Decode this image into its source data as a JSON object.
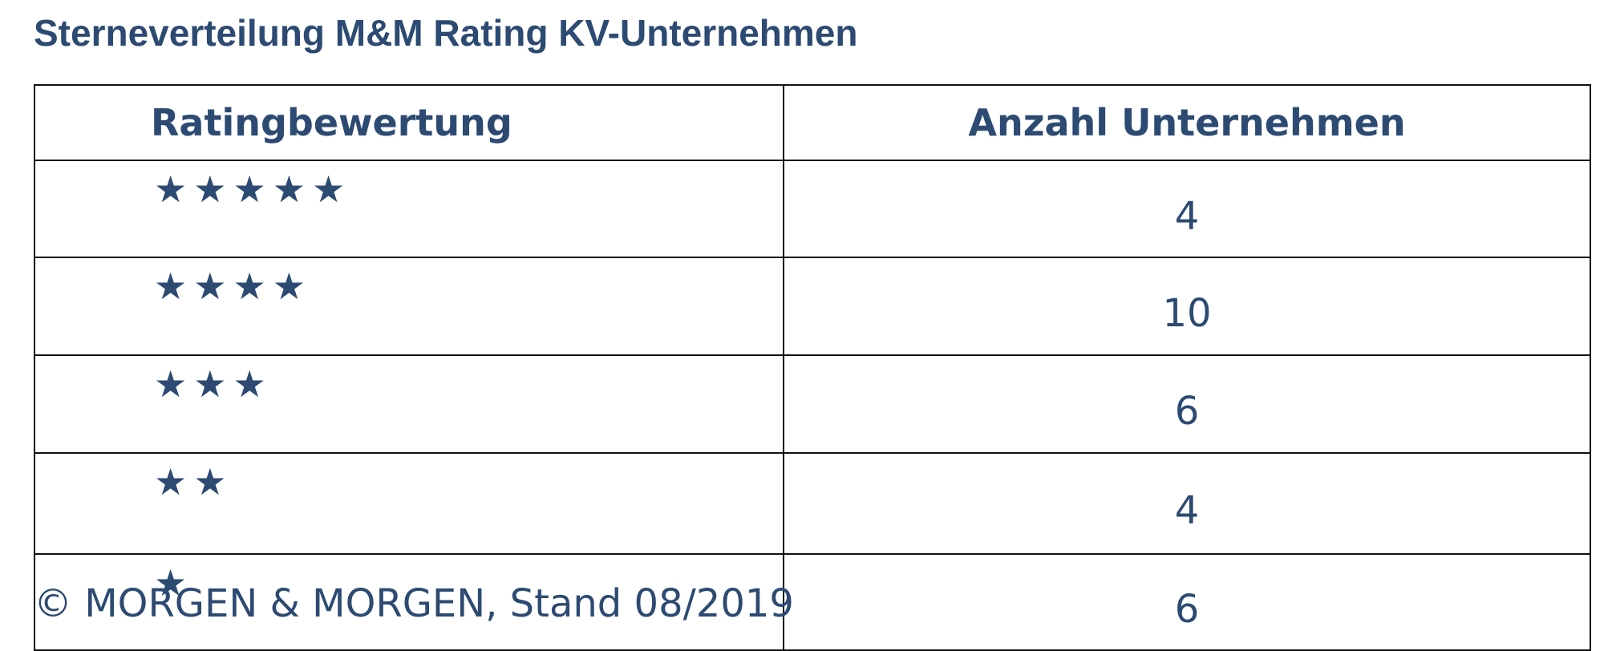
{
  "header": {
    "title": "Sterneverteilung M&M Rating KV-Unternehmen"
  },
  "table": {
    "columns": [
      "Ratingbewertung",
      "Anzahl Unternehmen"
    ],
    "rows": [
      [
        "★★★★★",
        "4"
      ],
      [
        "★★★★",
        "10"
      ],
      [
        "★★★",
        "6"
      ],
      [
        "★★",
        "4"
      ],
      [
        "★",
        "6"
      ]
    ]
  },
  "footer": {
    "text": "© MORGEN & MORGEN, Stand 08/2019"
  }
}
